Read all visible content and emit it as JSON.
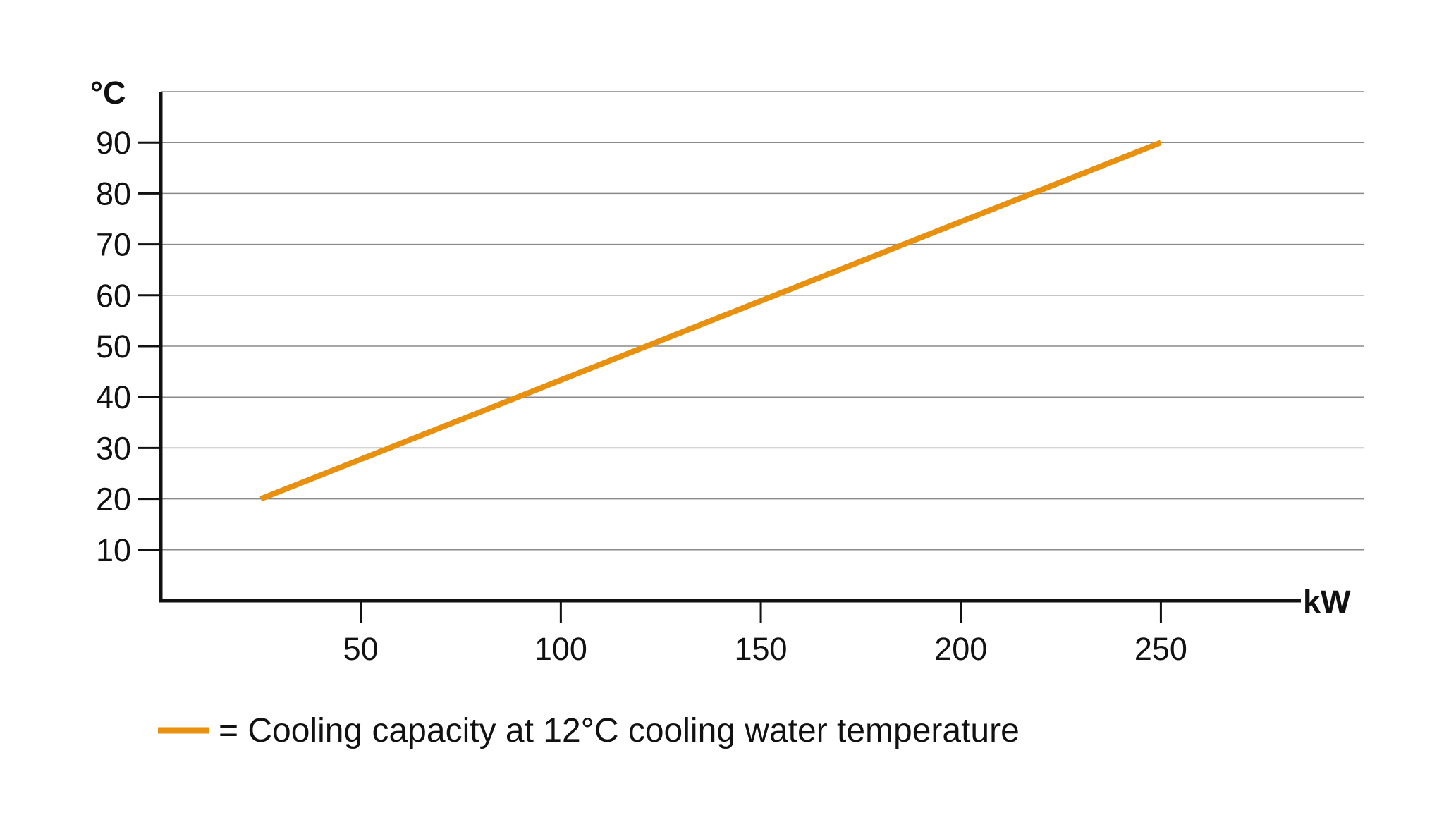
{
  "chart_data": {
    "type": "line",
    "title": "",
    "xlabel": "kW",
    "ylabel": "°C",
    "xlim": [
      0,
      285
    ],
    "ylim": [
      0,
      100
    ],
    "x_ticks": [
      50,
      100,
      150,
      200,
      250
    ],
    "y_ticks": [
      10,
      20,
      30,
      40,
      50,
      60,
      70,
      80,
      90
    ],
    "grid": true,
    "legend_position": "bottom-left",
    "series": [
      {
        "name": "= Cooling capacity at 12°C cooling water temperature",
        "color": "#E8900F",
        "x": [
          25,
          250
        ],
        "y": [
          20,
          90
        ]
      }
    ]
  },
  "colors": {
    "axis": "#111111",
    "grid": "#8a8a8a",
    "line": "#E8900F"
  }
}
